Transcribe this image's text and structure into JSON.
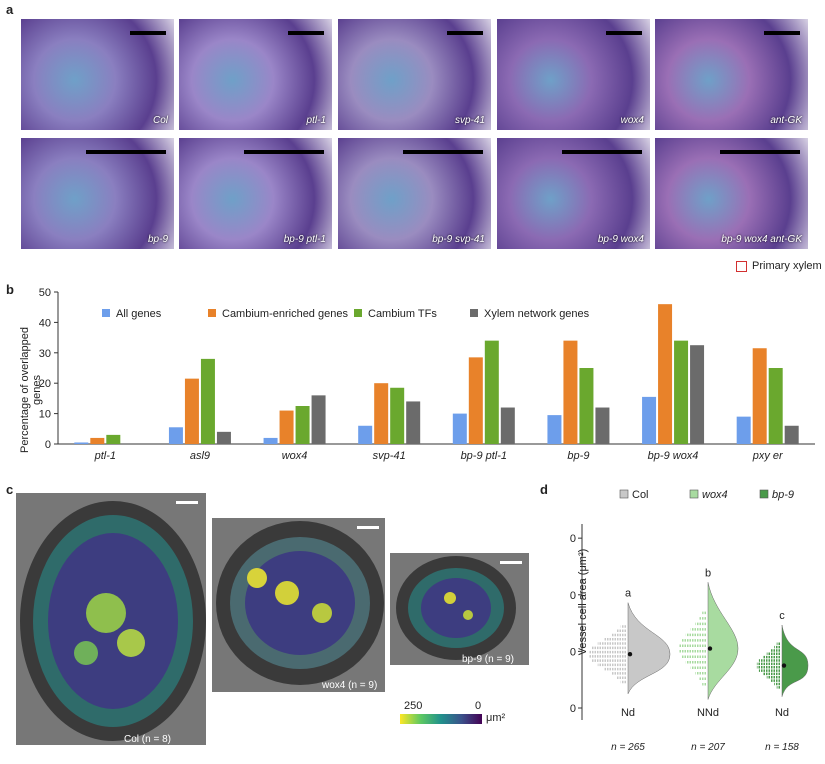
{
  "panel_a": {
    "letter": "a",
    "top_row": [
      "Col",
      "ptl-1",
      "svp-41",
      "wox4",
      "ant-GK"
    ],
    "bottom_row": [
      "bp-9",
      "bp-9 ptl-1",
      "bp-9 svp-41",
      "bp-9 wox4",
      "bp-9 wox4 ant-GK"
    ],
    "legend": "Primary xylem"
  },
  "panel_b": {
    "letter": "b",
    "ylabel": "Percentage of overlapped genes"
  },
  "panel_c": {
    "letter": "c",
    "captions": [
      "Col (n = 8)",
      "wox4 (n = 9)",
      "bp-9 (n = 9)"
    ],
    "colorbar": {
      "left": "250",
      "right": "0",
      "unit": "μm²"
    }
  },
  "panel_d": {
    "letter": "d",
    "legend": [
      "Col",
      "wox4",
      "bp-9"
    ],
    "ylabel": "Vessel cell area (μm²)",
    "letters": [
      "a",
      "b",
      "c"
    ],
    "bottom_labels": [
      "Nd",
      "NNd",
      "Nd"
    ],
    "n_labels": [
      "n = 265",
      "n = 207",
      "n = 158"
    ],
    "colors": [
      "#c8c8c8",
      "#a8dba0",
      "#4a9a4a"
    ]
  },
  "chart_data": {
    "type": "bar",
    "categories": [
      "ptl-1",
      "asl9",
      "wox4",
      "svp-41",
      "bp-9 ptl-1",
      "bp-9",
      "bp-9 wox4",
      "pxy er"
    ],
    "ylim": [
      0,
      50
    ],
    "yticks": [
      0,
      10,
      20,
      30,
      40,
      50
    ],
    "ylabel": "Percentage of overlapped genes",
    "grid": false,
    "legend_position": "top",
    "series": [
      {
        "name": "All genes",
        "color": "#6d9eeb",
        "values": [
          0.5,
          5.5,
          2,
          6,
          10,
          9.5,
          15.5,
          9
        ]
      },
      {
        "name": "Cambium-enriched genes",
        "color": "#e8822a",
        "values": [
          2,
          21.5,
          11,
          20,
          28.5,
          34,
          46,
          31.5
        ]
      },
      {
        "name": "Cambium TFs",
        "color": "#6aa82e",
        "values": [
          3,
          28,
          12.5,
          18.5,
          34,
          25,
          34,
          25
        ]
      },
      {
        "name": "Xylem network genes",
        "color": "#6b6b6b",
        "values": [
          0,
          4,
          16,
          14,
          12,
          12,
          32.5,
          6
        ]
      }
    ]
  }
}
